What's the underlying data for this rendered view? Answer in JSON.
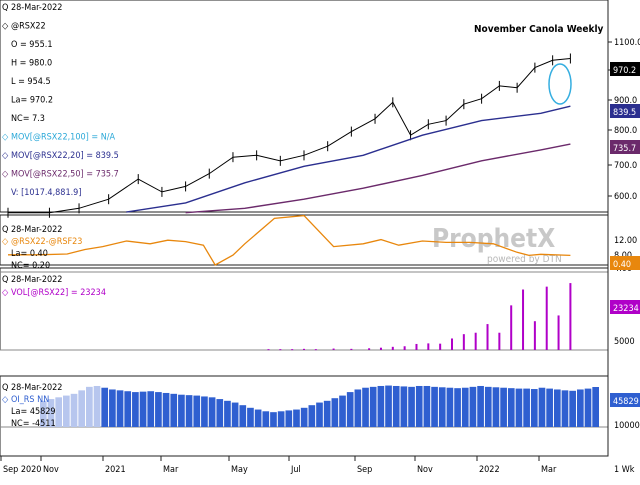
{
  "chart_title": "November Canola Weekly",
  "watermark": {
    "brand": "ProphetX",
    "tagline": "powered by DTN"
  },
  "x_axis": {
    "labels": [
      "Sep 2020",
      "Nov",
      "2021",
      "Mar",
      "May",
      "Jul",
      "Sep",
      "Nov",
      "2022",
      "Mar"
    ],
    "period_label": "1 Wk"
  },
  "panels": [
    {
      "id": "price",
      "legend": [
        {
          "icon": "Q",
          "text": "28-Mar-2022",
          "color": "#000000"
        },
        {
          "icon": "◇",
          "text": "@RSX22",
          "color": "#000000"
        },
        {
          "icon": "",
          "text": "O = 955.1",
          "color": "#000000"
        },
        {
          "icon": "",
          "text": "H = 980.0",
          "color": "#000000"
        },
        {
          "icon": "",
          "text": "L = 954.5",
          "color": "#000000"
        },
        {
          "icon": "",
          "text": "La= 970.2",
          "color": "#000000"
        },
        {
          "icon": "",
          "text": "NC= 7.3",
          "color": "#000000"
        },
        {
          "icon": "◇",
          "text": "MOV[@RSX22,100] = N/A",
          "color": "#2aa8d8"
        },
        {
          "icon": "◇",
          "text": "MOV[@RSX22,20] = 839.5",
          "color": "#2b2f8f"
        },
        {
          "icon": "◇",
          "text": "MOV[@RSX22,50] = 735.7",
          "color": "#6b2a6b"
        },
        {
          "icon": "",
          "text": "V: [1017.4,881.9]",
          "color": "#2b2f8f"
        }
      ],
      "y_ticks": [
        "1100.0",
        "1000.0",
        "900.0",
        "800.0",
        "700.0",
        "600.0"
      ],
      "value_boxes": [
        {
          "value": "970.2",
          "color": "#000000"
        },
        {
          "value": "839.5",
          "color": "#2b2f8f"
        },
        {
          "value": "735.7",
          "color": "#6b2a6b"
        }
      ]
    },
    {
      "id": "spread",
      "legend": [
        {
          "icon": "Q",
          "text": "28-Mar-2022",
          "color": "#000000"
        },
        {
          "icon": "◇",
          "text": "@RSX22-@RSF23",
          "color": "#e8870d"
        },
        {
          "icon": "",
          "text": "La= 0.40",
          "color": "#000000"
        },
        {
          "icon": "",
          "text": "NC= 0.20",
          "color": "#000000"
        }
      ],
      "y_ticks": [
        "12.00",
        "8.00",
        "4.00"
      ],
      "value_boxes": [
        {
          "value": "0.40",
          "color": "#e8870d"
        }
      ]
    },
    {
      "id": "volume",
      "legend": [
        {
          "icon": "Q",
          "text": "28-Mar-2022",
          "color": "#000000"
        },
        {
          "icon": "◇",
          "text": "VOL[@RSX22] = 23234",
          "color": "#b000c8"
        }
      ],
      "y_ticks": [
        "5000"
      ],
      "value_boxes": [
        {
          "value": "23234",
          "color": "#b000c8"
        }
      ]
    },
    {
      "id": "open_interest",
      "legend": [
        {
          "icon": "Q",
          "text": "28-Mar-2022",
          "color": "#000000"
        },
        {
          "icon": "◇",
          "text": "OI_RS NN",
          "color": "#2f5fd0"
        },
        {
          "icon": "",
          "text": "La= 45829",
          "color": "#000000"
        },
        {
          "icon": "",
          "text": "NC= -4511",
          "color": "#000000"
        }
      ],
      "y_ticks": [
        "10000"
      ],
      "value_boxes": [
        {
          "value": "45829",
          "color": "#2f5fd0"
        }
      ]
    }
  ],
  "chart_data": {
    "type": "line",
    "x_range": [
      "2020-09",
      "2022-03-28"
    ],
    "panels": [
      {
        "name": "price",
        "ylim": [
          550,
          1130
        ],
        "ohlc_summary": {
          "open": 955.1,
          "high": 980.0,
          "low": 954.5,
          "last": 970.2
        },
        "series": [
          {
            "name": "@RSX22",
            "color": "#000000",
            "x": [
              0.0,
              0.07,
              0.12,
              0.17,
              0.22,
              0.26,
              0.3,
              0.34,
              0.38,
              0.42,
              0.46,
              0.5,
              0.54,
              0.58,
              0.62,
              0.65,
              0.68,
              0.71,
              0.74,
              0.77,
              0.8,
              0.83,
              0.86,
              0.89,
              0.92,
              0.95
            ],
            "values": [
              548,
              548,
              560,
              585,
              640,
              605,
              620,
              655,
              700,
              705,
              690,
              705,
              730,
              770,
              805,
              850,
              760,
              790,
              800,
              845,
              860,
              895,
              890,
              945,
              965,
              970
            ]
          },
          {
            "name": "MOV[@RSX22,20]",
            "color": "#2b2f8f",
            "x": [
              0.2,
              0.3,
              0.4,
              0.5,
              0.6,
              0.7,
              0.8,
              0.9,
              0.95
            ],
            "values": [
              550,
              575,
              630,
              675,
              705,
              760,
              800,
              820,
              839.5
            ]
          },
          {
            "name": "MOV[@RSX22,50]",
            "color": "#6b2a6b",
            "x": [
              0.3,
              0.4,
              0.5,
              0.6,
              0.7,
              0.8,
              0.9,
              0.95
            ],
            "values": [
              548,
              560,
              585,
              615,
              650,
              690,
              720,
              735.7
            ]
          }
        ]
      },
      {
        "name": "@RSX22-@RSF23",
        "ylim": [
          0,
          14
        ],
        "color": "#e8870d",
        "x": [
          0.0,
          0.05,
          0.1,
          0.13,
          0.16,
          0.2,
          0.24,
          0.27,
          0.3,
          0.33,
          0.35,
          0.38,
          0.4,
          0.45,
          0.5,
          0.55,
          0.6,
          0.63,
          0.66,
          0.7,
          0.74,
          0.78,
          0.82,
          0.86,
          0.88,
          0.9,
          0.95
        ],
        "values": [
          0.6,
          0.6,
          0.9,
          2.5,
          3.5,
          5.5,
          4.5,
          5.8,
          5.3,
          4.0,
          -3.0,
          0.5,
          4.5,
          13.5,
          14.5,
          3.5,
          4.5,
          6.0,
          4.0,
          5.5,
          5.0,
          5.0,
          4.5,
          1.5,
          0.4,
          0.8,
          0.4
        ]
      },
      {
        "name": "VOL[@RSX22]",
        "type": "bar",
        "ylim": [
          0,
          25000
        ],
        "color": "#b000c8",
        "x": [
          0.44,
          0.46,
          0.48,
          0.5,
          0.52,
          0.55,
          0.58,
          0.61,
          0.63,
          0.65,
          0.67,
          0.69,
          0.71,
          0.73,
          0.75,
          0.77,
          0.79,
          0.81,
          0.83,
          0.85,
          0.87,
          0.89,
          0.91,
          0.93,
          0.95
        ],
        "values": [
          300,
          300,
          300,
          400,
          300,
          500,
          400,
          600,
          800,
          1100,
          1300,
          2100,
          2300,
          2200,
          4000,
          5500,
          6000,
          9000,
          6000,
          15500,
          21000,
          10000,
          22000,
          12000,
          23234
        ]
      },
      {
        "name": "OI_RS NN",
        "type": "bar",
        "ylim": [
          0,
          55000
        ],
        "color": "#2f5fd0",
        "values": [
          30000,
          32000,
          34000,
          36000,
          38000,
          42000,
          46000,
          47000,
          45000,
          43000,
          42000,
          41000,
          40000,
          40500,
          41000,
          40000,
          39000,
          38000,
          37000,
          36500,
          36000,
          35000,
          34000,
          32000,
          30000,
          28000,
          25000,
          22000,
          20000,
          18000,
          17000,
          18000,
          19000,
          20000,
          22000,
          25000,
          28000,
          30000,
          33000,
          36000,
          40000,
          43000,
          45000,
          46000,
          47000,
          47500,
          47000,
          46500,
          46000,
          47000,
          47000,
          46000,
          45500,
          45000,
          44500,
          45000,
          46000,
          47000,
          46000,
          45500,
          45000,
          44500,
          44000,
          44000,
          43500,
          45000,
          44000,
          43000,
          42000,
          41500,
          43000,
          44000,
          45829
        ]
      }
    ]
  }
}
